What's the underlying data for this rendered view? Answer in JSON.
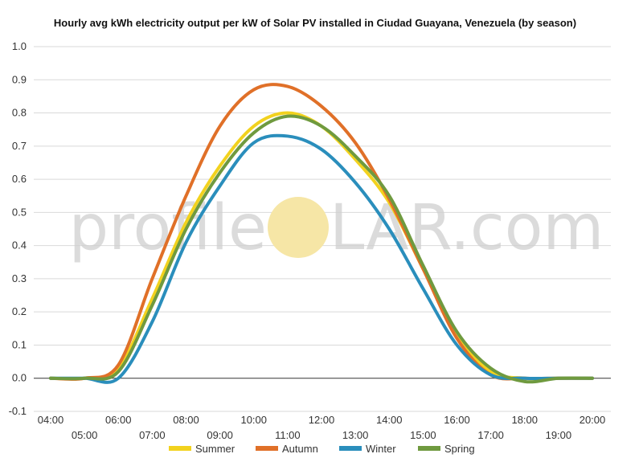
{
  "chart_data": {
    "type": "line",
    "title": "Hourly avg kWh electricity output per kW of Solar PV installed in Ciudad Guayana, Venezuela (by season)",
    "xlabel": "",
    "ylabel": "",
    "x": [
      "04:00",
      "05:00",
      "06:00",
      "07:00",
      "08:00",
      "09:00",
      "10:00",
      "11:00",
      "12:00",
      "13:00",
      "14:00",
      "15:00",
      "16:00",
      "17:00",
      "18:00",
      "19:00",
      "20:00"
    ],
    "ylim": [
      -0.1,
      1.0
    ],
    "yticks": [
      "-0.1",
      "0.0",
      "0.1",
      "0.2",
      "0.3",
      "0.4",
      "0.5",
      "0.6",
      "0.7",
      "0.8",
      "0.9",
      "1.0"
    ],
    "grid": true,
    "legend_position": "bottom",
    "series": [
      {
        "name": "Summer",
        "color": "#f2d21e",
        "values": [
          0.0,
          0.0,
          0.03,
          0.24,
          0.47,
          0.64,
          0.76,
          0.8,
          0.76,
          0.66,
          0.53,
          0.33,
          0.13,
          0.02,
          0.0,
          0.0,
          0.0
        ]
      },
      {
        "name": "Autumn",
        "color": "#e07028",
        "values": [
          0.0,
          0.0,
          0.04,
          0.3,
          0.55,
          0.76,
          0.87,
          0.88,
          0.82,
          0.71,
          0.54,
          0.33,
          0.12,
          0.01,
          0.0,
          0.0,
          0.0
        ]
      },
      {
        "name": "Winter",
        "color": "#2a8ebc",
        "values": [
          0.0,
          0.0,
          0.0,
          0.17,
          0.41,
          0.58,
          0.71,
          0.73,
          0.69,
          0.59,
          0.45,
          0.27,
          0.1,
          0.01,
          0.0,
          0.0,
          0.0
        ]
      },
      {
        "name": "Spring",
        "color": "#6f9a3f",
        "values": [
          0.0,
          0.0,
          0.02,
          0.22,
          0.45,
          0.62,
          0.74,
          0.79,
          0.76,
          0.67,
          0.55,
          0.34,
          0.14,
          0.03,
          -0.01,
          0.0,
          0.0
        ]
      }
    ]
  },
  "watermark": {
    "left_text": "profile",
    "right_text": "LAR.com",
    "sun_color": "#f6e6a6"
  }
}
